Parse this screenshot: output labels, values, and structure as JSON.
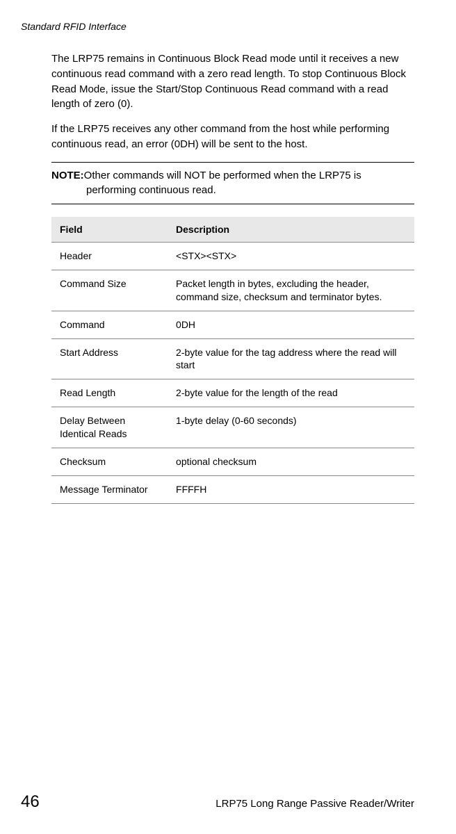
{
  "running_header": "Standard RFID Interface",
  "para1": "The LRP75 remains in Continuous Block Read mode until it receives a new continuous read command with a zero read length. To stop Continuous Block Read Mode, issue the Start/Stop Continuous Read command with a read length of zero (0).",
  "para2": "If the LRP75 receives any other command from the host while performing continuous read, an error (0DH) will be sent to the host.",
  "note_label": "NOTE:",
  "note_line1": "Other commands will NOT be performed when the LRP75 is",
  "note_line2": "performing continuous read.",
  "table": {
    "headers": {
      "field": "Field",
      "desc": "Description"
    },
    "rows": [
      {
        "field": "Header",
        "desc": "<STX><STX>"
      },
      {
        "field": "Command Size",
        "desc": "Packet length in bytes, excluding the header, command size, checksum and terminator bytes."
      },
      {
        "field": "Command",
        "desc": "0DH"
      },
      {
        "field": "Start Address",
        "desc": "2-byte value for the tag address where the read will start"
      },
      {
        "field": "Read Length",
        "desc": "2-byte value for the length of the read"
      },
      {
        "field": "Delay Between Identical Reads",
        "desc": "1-byte delay (0-60 seconds)"
      },
      {
        "field": "Checksum",
        "desc": "optional checksum"
      },
      {
        "field": "Message Terminator",
        "desc": "FFFFH"
      }
    ]
  },
  "footer": {
    "page": "46",
    "title": "LRP75 Long Range Passive Reader/Writer"
  }
}
